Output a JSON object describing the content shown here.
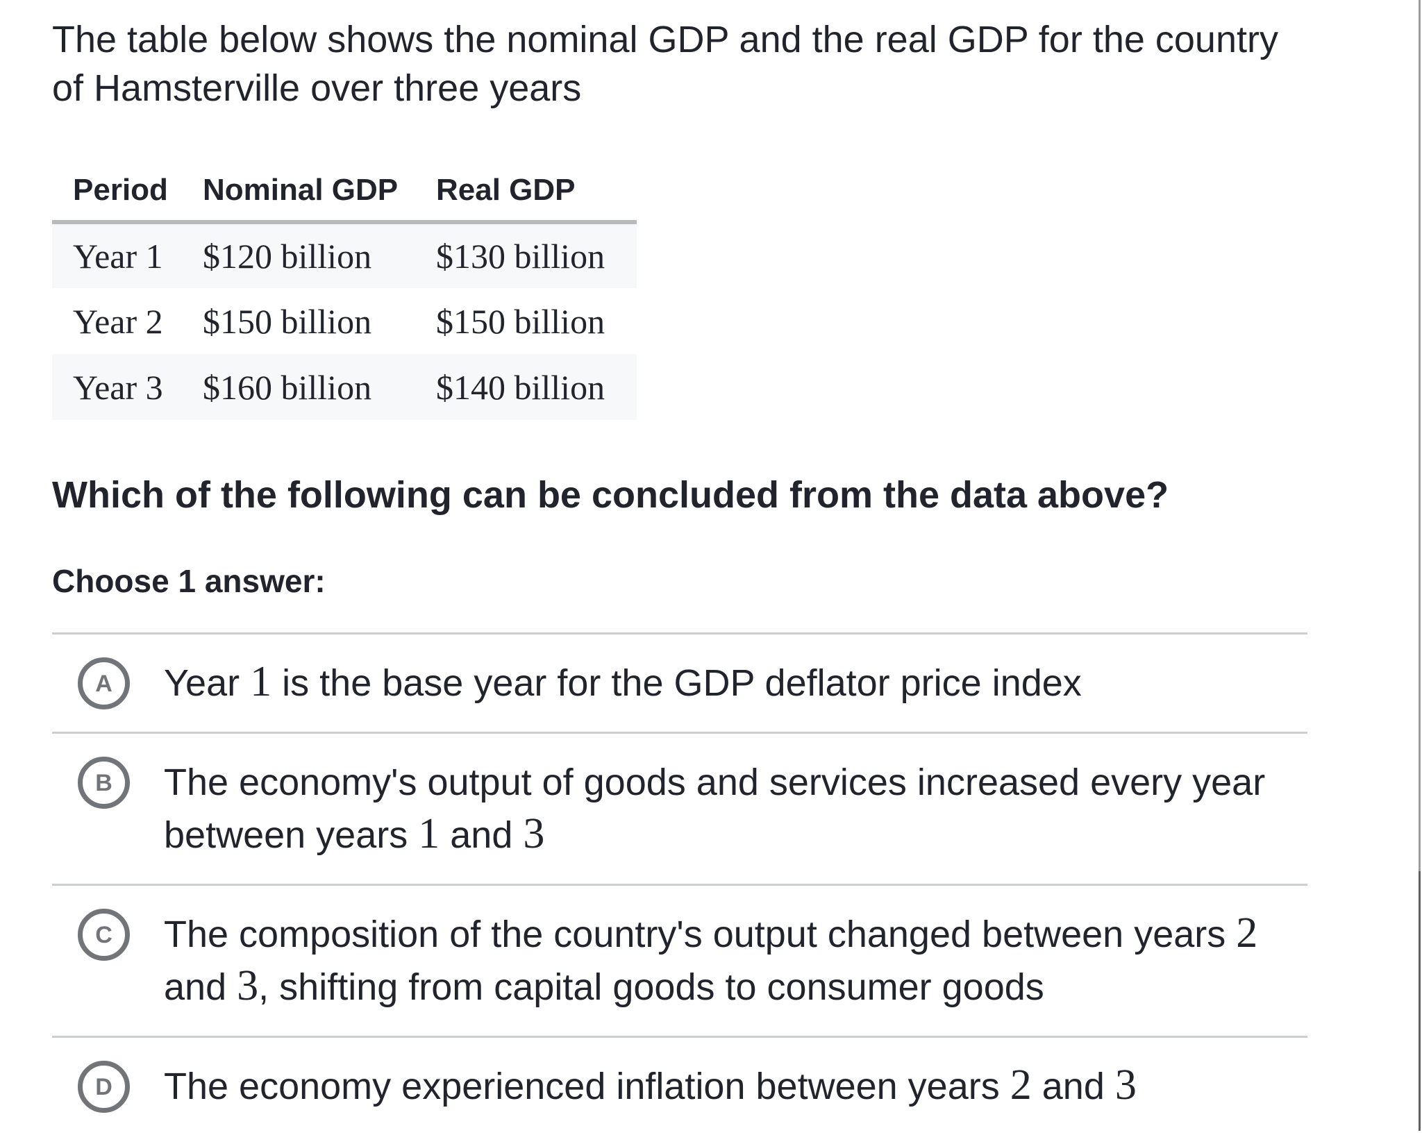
{
  "intro": {
    "line1": "The table below shows the nominal GDP and the real GDP for the country",
    "line2": "of Hamsterville over three years"
  },
  "table": {
    "headers": [
      "Period",
      "Nominal GDP",
      "Real GDP"
    ],
    "rows": [
      {
        "period": "Year 1",
        "nominal": "$120 billion",
        "real": "$130 billion"
      },
      {
        "period": "Year 2",
        "nominal": "$150 billion",
        "real": "$150 billion"
      },
      {
        "period": "Year 3",
        "nominal": "$160 billion",
        "real": "$140 billion"
      }
    ]
  },
  "question": "Which of the following can be concluded from the data above?",
  "prompt": "Choose 1 answer:",
  "options": [
    {
      "letter": "A",
      "line1": [
        {
          "t": "Year "
        },
        {
          "t": "1"
        },
        {
          "t": " is the base year for the GDP deflator price index"
        }
      ]
    },
    {
      "letter": "B",
      "line1": [
        {
          "t": "The economy's output of goods and services increased every year"
        }
      ],
      "line2": [
        {
          "t": "between years "
        },
        {
          "t": "1"
        },
        {
          "t": " and "
        },
        {
          "t": "3"
        }
      ]
    },
    {
      "letter": "C",
      "line1": [
        {
          "t": "The composition of the country's output changed between years "
        },
        {
          "t": "2"
        }
      ],
      "line2": [
        {
          "t": "and "
        },
        {
          "t": "3"
        },
        {
          "t": ", shifting from capital goods to consumer goods"
        }
      ]
    },
    {
      "letter": "D",
      "line1": [
        {
          "t": "The economy experienced inflation between years "
        },
        {
          "t": "2"
        },
        {
          "t": " and "
        },
        {
          "t": "3"
        }
      ]
    }
  ],
  "colors": {
    "text": "#21242c",
    "table_stripe": "#f7f8f9",
    "table_rule": "#b8babd",
    "divider": "#cdcecf",
    "radio_circle": "#717479",
    "edge_line": "#9b9ea1"
  }
}
